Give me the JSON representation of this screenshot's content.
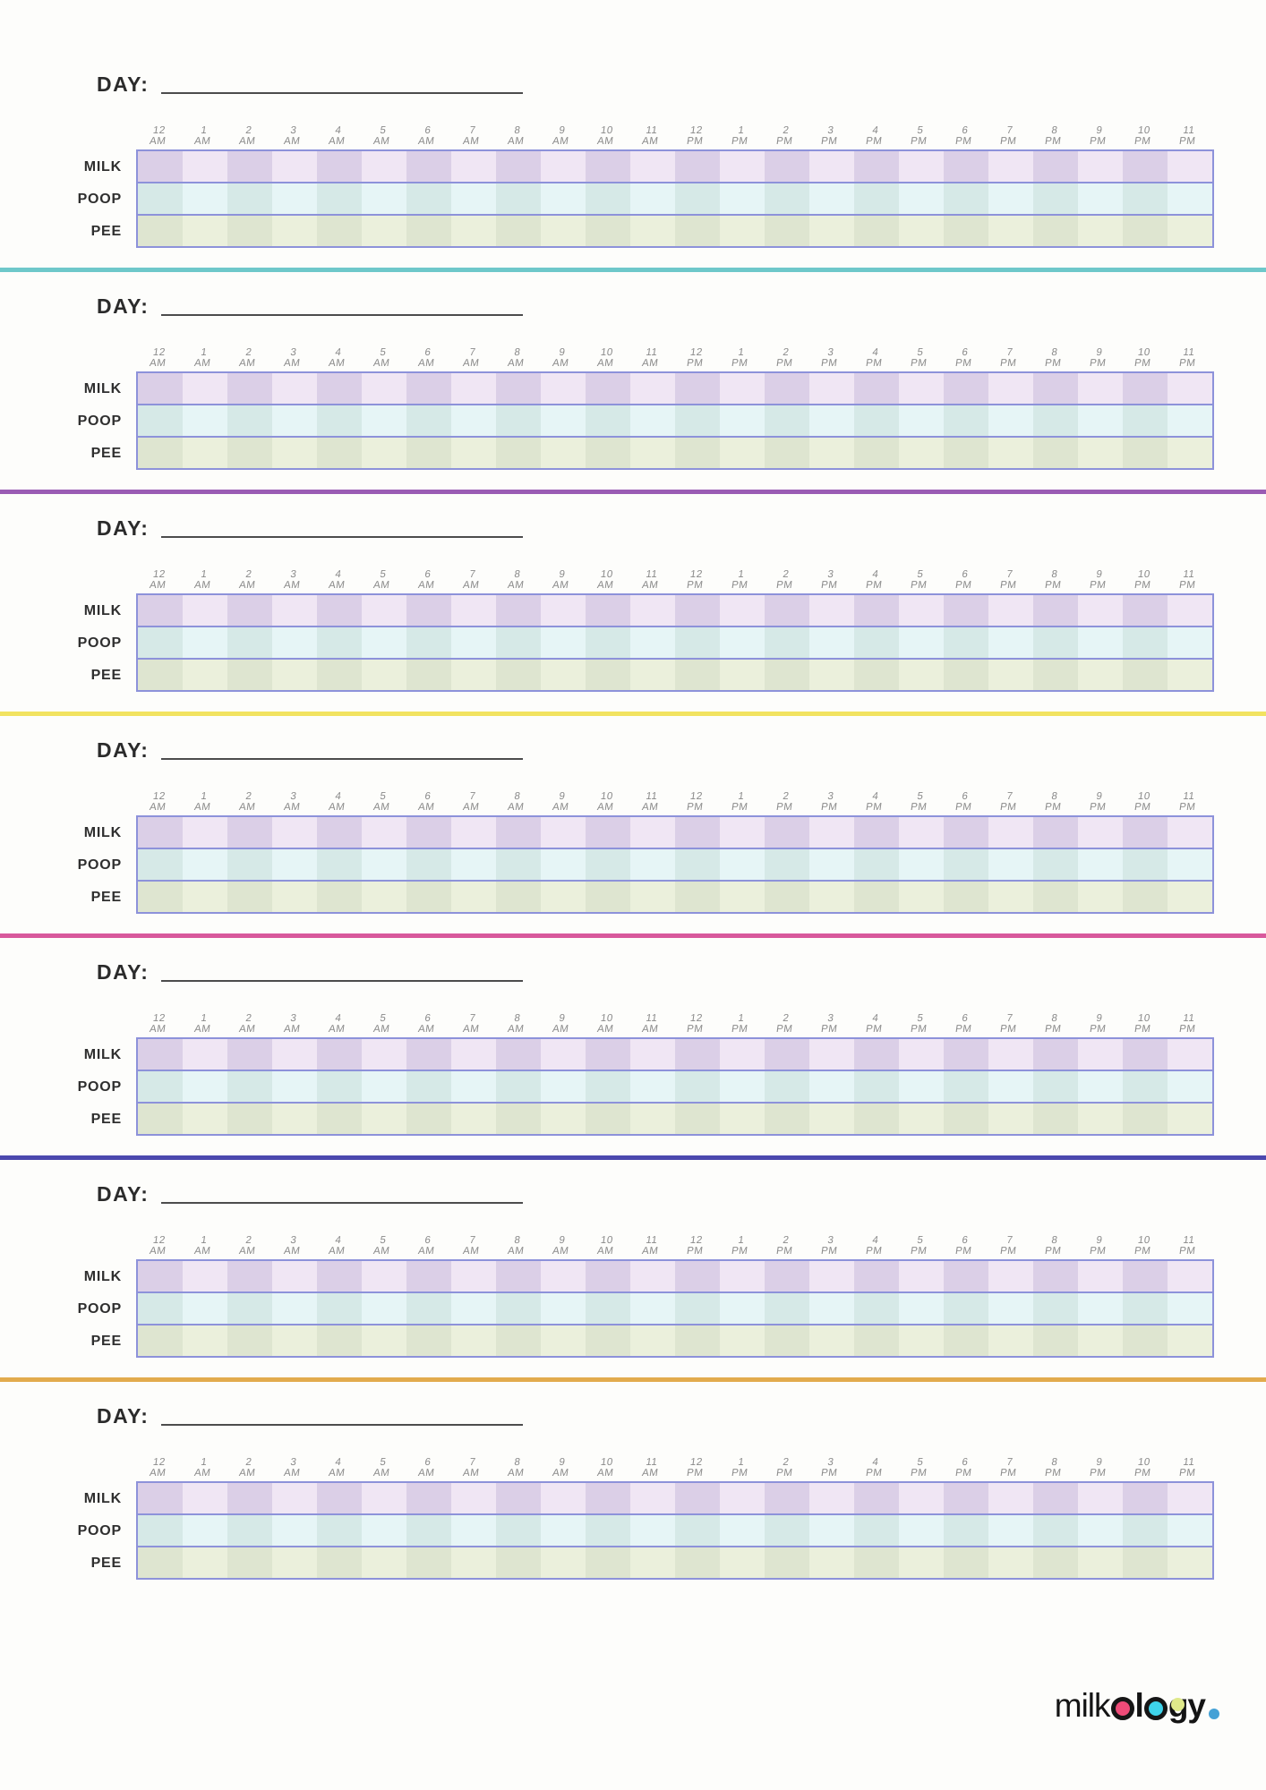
{
  "labels": {
    "day": "DAY:"
  },
  "rows": [
    {
      "label": "MILK",
      "key": "milk"
    },
    {
      "label": "POOP",
      "key": "poop"
    },
    {
      "label": "PEE",
      "key": "pee"
    }
  ],
  "hours": [
    {
      "n": "12",
      "p": "AM"
    },
    {
      "n": "1",
      "p": "AM"
    },
    {
      "n": "2",
      "p": "AM"
    },
    {
      "n": "3",
      "p": "AM"
    },
    {
      "n": "4",
      "p": "AM"
    },
    {
      "n": "5",
      "p": "AM"
    },
    {
      "n": "6",
      "p": "AM"
    },
    {
      "n": "7",
      "p": "AM"
    },
    {
      "n": "8",
      "p": "AM"
    },
    {
      "n": "9",
      "p": "AM"
    },
    {
      "n": "10",
      "p": "AM"
    },
    {
      "n": "11",
      "p": "AM"
    },
    {
      "n": "12",
      "p": "PM"
    },
    {
      "n": "1",
      "p": "PM"
    },
    {
      "n": "2",
      "p": "PM"
    },
    {
      "n": "3",
      "p": "PM"
    },
    {
      "n": "4",
      "p": "PM"
    },
    {
      "n": "5",
      "p": "PM"
    },
    {
      "n": "6",
      "p": "PM"
    },
    {
      "n": "7",
      "p": "PM"
    },
    {
      "n": "8",
      "p": "PM"
    },
    {
      "n": "9",
      "p": "PM"
    },
    {
      "n": "10",
      "p": "PM"
    },
    {
      "n": "11",
      "p": "PM"
    }
  ],
  "sections": [
    {
      "day_value": ""
    },
    {
      "day_value": ""
    },
    {
      "day_value": ""
    },
    {
      "day_value": ""
    },
    {
      "day_value": ""
    },
    {
      "day_value": ""
    },
    {
      "day_value": ""
    }
  ],
  "colors": {
    "grid_border": "#8d92da",
    "header_text": "#8a8a8a",
    "milk": [
      "#dbcfe7",
      "#f0e6f4"
    ],
    "poop": [
      "#d6e9e7",
      "#e6f5f6"
    ],
    "pee": [
      "#dee5d0",
      "#ebf0dc"
    ],
    "divider_colors": [
      "#6ec8ca",
      "#9a5cb4",
      "#f2e360",
      "#d8599c",
      "#4b48ae",
      "#e2ab4d"
    ]
  },
  "logo": {
    "word_thin": "milk",
    "letter_l": "l",
    "letter_g": "g",
    "letter_y": "y",
    "o1_color": "#ee4b78",
    "o2_color": "#3ed3ea",
    "g_bowl_color": "#dfe98a",
    "dot_color": "#45a1d6"
  }
}
